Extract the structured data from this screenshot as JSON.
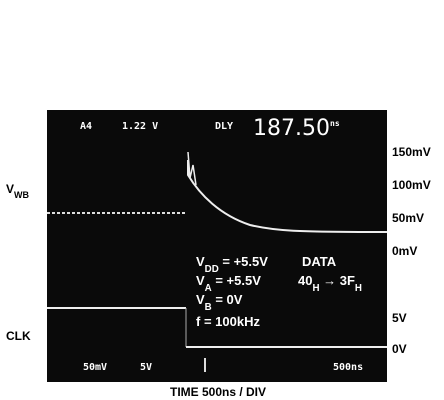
{
  "screen": {
    "channel": "A4",
    "level": "1.22 V",
    "delay_label": "DLY",
    "delay_value": "187.50",
    "delay_unit": "ns",
    "ch1_scale": "50mV",
    "ch2_scale": "5V",
    "time_scale": "500ns"
  },
  "scale_labels": [
    "150mV",
    "100mV",
    "50mV",
    "0mV",
    "5V",
    "0V"
  ],
  "trace_labels": {
    "wb": [
      {
        "t": "V"
      },
      {
        "t": "WB",
        "sub": true
      }
    ],
    "clk": "CLK"
  },
  "conditions": {
    "lines": [
      [
        {
          "t": "V"
        },
        {
          "t": "DD",
          "sub": true
        },
        {
          "t": " = +5.5V"
        }
      ],
      [
        {
          "t": "V"
        },
        {
          "t": "A",
          "sub": true
        },
        {
          "t": " = +5.5V"
        }
      ],
      [
        {
          "t": "V"
        },
        {
          "t": "B",
          "sub": true
        },
        {
          "t": " = 0V"
        }
      ],
      [
        {
          "t": "f = 100kHz"
        }
      ]
    ],
    "data_label": "DATA",
    "data_code": [
      {
        "t": "40"
      },
      {
        "t": "H",
        "sub": true
      },
      {
        "t": " → 3F"
      },
      {
        "t": "H",
        "sub": true
      }
    ]
  },
  "caption": "TIME 500ns / DIV"
}
